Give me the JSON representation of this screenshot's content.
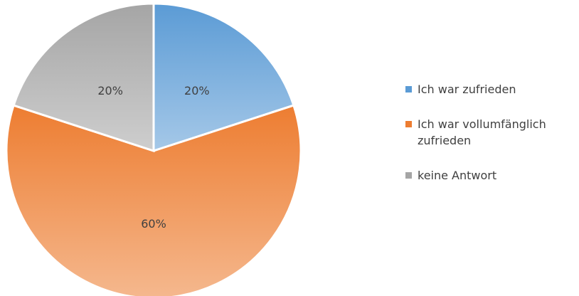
{
  "chart_data": {
    "type": "pie",
    "categories": [
      "Ich war zufrieden",
      "Ich war vollumfänglich zufrieden",
      "keine Antwort"
    ],
    "values": [
      20,
      60,
      20
    ],
    "value_labels": [
      "20%",
      "60%",
      "20%"
    ],
    "colors": [
      "#5b9bd5",
      "#ed7d31",
      "#a5a5a5"
    ],
    "legend": "right"
  }
}
